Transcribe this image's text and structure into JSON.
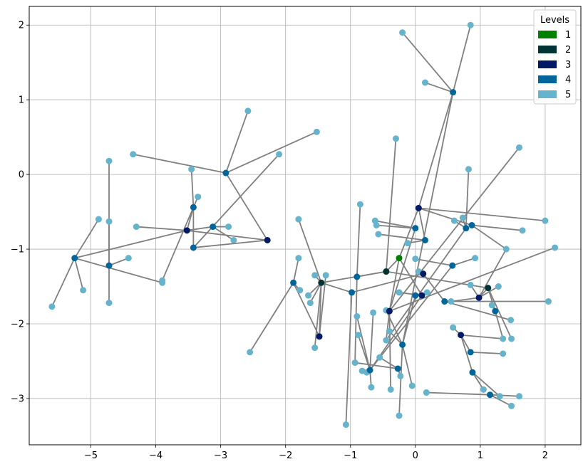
{
  "chart_data": {
    "type": "scatter",
    "title": "",
    "xlabel": "",
    "ylabel": "",
    "xlim": [
      -5.95,
      2.55
    ],
    "ylim": [
      -3.62,
      2.25
    ],
    "xticks": [
      -5,
      -4,
      -3,
      -2,
      -1,
      0,
      1,
      2
    ],
    "yticks": [
      -3,
      -2,
      -1,
      0,
      1,
      2
    ],
    "xtick_labels": [
      "−5",
      "−4",
      "−3",
      "−2",
      "−1",
      "0",
      "1",
      "2"
    ],
    "ytick_labels": [
      "−3",
      "−2",
      "−1",
      "0",
      "1",
      "2"
    ],
    "grid": true,
    "edge_color": "#808080",
    "legend": {
      "title": "Levels",
      "placement": "top-right",
      "entries": [
        {
          "label": "1",
          "color": "#008000"
        },
        {
          "label": "2",
          "color": "#003333"
        },
        {
          "label": "3",
          "color": "#001a66"
        },
        {
          "label": "4",
          "color": "#006699"
        },
        {
          "label": "5",
          "color": "#66b3cc"
        }
      ]
    },
    "level_colors": {
      "1": "#008000",
      "2": "#003333",
      "3": "#001a66",
      "4": "#006699",
      "5": "#66b3cc"
    },
    "nodes": [
      {
        "id": "r",
        "x": -0.25,
        "y": -1.12,
        "level": 1
      },
      {
        "id": "a",
        "x": -0.45,
        "y": -1.3,
        "level": 2
      },
      {
        "id": "b",
        "x": -1.45,
        "y": -1.45,
        "level": 2
      },
      {
        "id": "c",
        "x": 1.12,
        "y": -1.52,
        "level": 2
      },
      {
        "id": "d",
        "x": 0.05,
        "y": -0.45,
        "level": 3
      },
      {
        "id": "e",
        "x": -2.28,
        "y": -0.88,
        "level": 3
      },
      {
        "id": "f",
        "x": -3.52,
        "y": -0.75,
        "level": 3
      },
      {
        "id": "g",
        "x": -1.48,
        "y": -2.17,
        "level": 3
      },
      {
        "id": "h",
        "x": -0.4,
        "y": -1.83,
        "level": 3
      },
      {
        "id": "i",
        "x": 0.12,
        "y": -1.33,
        "level": 3
      },
      {
        "id": "j",
        "x": 0.7,
        "y": -2.15,
        "level": 3
      },
      {
        "id": "k",
        "x": 0.98,
        "y": -1.65,
        "level": 3
      },
      {
        "id": "l",
        "x": 0.1,
        "y": -1.62,
        "level": 3
      },
      {
        "id": "m1",
        "x": 0.58,
        "y": 1.1,
        "level": 4
      },
      {
        "id": "m2",
        "x": -2.92,
        "y": 0.02,
        "level": 4
      },
      {
        "id": "m3",
        "x": -3.42,
        "y": -0.44,
        "level": 4
      },
      {
        "id": "m4",
        "x": -3.12,
        "y": -0.7,
        "level": 4
      },
      {
        "id": "m5",
        "x": -3.42,
        "y": -0.98,
        "level": 4
      },
      {
        "id": "m6",
        "x": -5.25,
        "y": -1.12,
        "level": 4
      },
      {
        "id": "m7",
        "x": -4.72,
        "y": -1.22,
        "level": 4
      },
      {
        "id": "m8",
        "x": -1.88,
        "y": -1.45,
        "level": 4
      },
      {
        "id": "m9",
        "x": -0.98,
        "y": -1.58,
        "level": 4
      },
      {
        "id": "m10",
        "x": -0.9,
        "y": -1.37,
        "level": 4
      },
      {
        "id": "m11",
        "x": 0.15,
        "y": -0.88,
        "level": 4
      },
      {
        "id": "m12",
        "x": 0.0,
        "y": -0.72,
        "level": 4
      },
      {
        "id": "m13",
        "x": 0.78,
        "y": -0.72,
        "level": 4
      },
      {
        "id": "m14",
        "x": 0.87,
        "y": -0.68,
        "level": 4
      },
      {
        "id": "m15",
        "x": 0.57,
        "y": -1.22,
        "level": 4
      },
      {
        "id": "m16",
        "x": 0.45,
        "y": -1.7,
        "level": 4
      },
      {
        "id": "m17",
        "x": 0.0,
        "y": -1.62,
        "level": 4
      },
      {
        "id": "m18",
        "x": 1.23,
        "y": -1.83,
        "level": 4
      },
      {
        "id": "m19",
        "x": 0.85,
        "y": -2.38,
        "level": 4
      },
      {
        "id": "m20",
        "x": 0.88,
        "y": -2.65,
        "level": 4
      },
      {
        "id": "m21",
        "x": 1.15,
        "y": -2.95,
        "level": 4
      },
      {
        "id": "m22",
        "x": -0.2,
        "y": -2.28,
        "level": 4
      },
      {
        "id": "m23",
        "x": -0.27,
        "y": -2.6,
        "level": 4
      },
      {
        "id": "m24",
        "x": -0.7,
        "y": -2.62,
        "level": 4
      },
      {
        "id": "n1",
        "x": -0.2,
        "y": 1.9,
        "level": 5
      },
      {
        "id": "n2",
        "x": 0.85,
        "y": 2.0,
        "level": 5
      },
      {
        "id": "n3",
        "x": 0.15,
        "y": 1.23,
        "level": 5
      },
      {
        "id": "n4",
        "x": -2.58,
        "y": 0.85,
        "level": 5
      },
      {
        "id": "n5",
        "x": -1.52,
        "y": 0.57,
        "level": 5
      },
      {
        "id": "n6",
        "x": -2.1,
        "y": 0.27,
        "level": 5
      },
      {
        "id": "n7",
        "x": -4.35,
        "y": 0.27,
        "level": 5
      },
      {
        "id": "n8",
        "x": -4.72,
        "y": 0.18,
        "level": 5
      },
      {
        "id": "n9",
        "x": -3.45,
        "y": 0.07,
        "level": 5
      },
      {
        "id": "n10",
        "x": -3.35,
        "y": -0.3,
        "level": 5
      },
      {
        "id": "n11",
        "x": -4.88,
        "y": -0.6,
        "level": 5
      },
      {
        "id": "n12",
        "x": -4.72,
        "y": -0.63,
        "level": 5
      },
      {
        "id": "n13",
        "x": -4.3,
        "y": -0.7,
        "level": 5
      },
      {
        "id": "n14",
        "x": -2.88,
        "y": -0.7,
        "level": 5
      },
      {
        "id": "n15",
        "x": -2.8,
        "y": -0.88,
        "level": 5
      },
      {
        "id": "n16",
        "x": -4.42,
        "y": -1.12,
        "level": 5
      },
      {
        "id": "n17",
        "x": -3.9,
        "y": -1.42,
        "level": 5
      },
      {
        "id": "n18",
        "x": -3.9,
        "y": -1.45,
        "level": 5
      },
      {
        "id": "n19",
        "x": -5.12,
        "y": -1.55,
        "level": 5
      },
      {
        "id": "n20",
        "x": -4.72,
        "y": -1.72,
        "level": 5
      },
      {
        "id": "n21",
        "x": -5.6,
        "y": -1.77,
        "level": 5
      },
      {
        "id": "n22",
        "x": -2.55,
        "y": -2.38,
        "level": 5
      },
      {
        "id": "n23",
        "x": -1.8,
        "y": -0.6,
        "level": 5
      },
      {
        "id": "n24",
        "x": -1.8,
        "y": -1.12,
        "level": 5
      },
      {
        "id": "n25",
        "x": -1.55,
        "y": -1.35,
        "level": 5
      },
      {
        "id": "n26",
        "x": -1.38,
        "y": -1.35,
        "level": 5
      },
      {
        "id": "n27",
        "x": -1.78,
        "y": -1.55,
        "level": 5
      },
      {
        "id": "n28",
        "x": -1.65,
        "y": -1.62,
        "level": 5
      },
      {
        "id": "n29",
        "x": -1.62,
        "y": -1.72,
        "level": 5
      },
      {
        "id": "n30",
        "x": -1.55,
        "y": -2.32,
        "level": 5
      },
      {
        "id": "n31",
        "x": -0.85,
        "y": -0.4,
        "level": 5
      },
      {
        "id": "n32",
        "x": -0.62,
        "y": -0.62,
        "level": 5
      },
      {
        "id": "n33",
        "x": -0.6,
        "y": -0.68,
        "level": 5
      },
      {
        "id": "n34",
        "x": -0.57,
        "y": -0.8,
        "level": 5
      },
      {
        "id": "n35",
        "x": -0.3,
        "y": 0.48,
        "level": 5
      },
      {
        "id": "n36",
        "x": -0.12,
        "y": -0.92,
        "level": 5
      },
      {
        "id": "n37",
        "x": 0.6,
        "y": -0.62,
        "level": 5
      },
      {
        "id": "n38",
        "x": 0.73,
        "y": -0.58,
        "level": 5
      },
      {
        "id": "n39",
        "x": 0.82,
        "y": 0.07,
        "level": 5
      },
      {
        "id": "n40",
        "x": 1.6,
        "y": 0.36,
        "level": 5
      },
      {
        "id": "n41",
        "x": 1.65,
        "y": -0.75,
        "level": 5
      },
      {
        "id": "n42",
        "x": 2.0,
        "y": -0.62,
        "level": 5
      },
      {
        "id": "n43",
        "x": 2.15,
        "y": -0.98,
        "level": 5
      },
      {
        "id": "n44",
        "x": 1.4,
        "y": -1.0,
        "level": 5
      },
      {
        "id": "n45",
        "x": 0.92,
        "y": -1.12,
        "level": 5
      },
      {
        "id": "n46",
        "x": 0.0,
        "y": -1.13,
        "level": 5
      },
      {
        "id": "n47",
        "x": 0.05,
        "y": -1.3,
        "level": 5
      },
      {
        "id": "n48",
        "x": 0.85,
        "y": -1.48,
        "level": 5
      },
      {
        "id": "n49",
        "x": 0.18,
        "y": -1.58,
        "level": 5
      },
      {
        "id": "n50",
        "x": -0.25,
        "y": -1.58,
        "level": 5
      },
      {
        "id": "n51",
        "x": 0.55,
        "y": -1.7,
        "level": 5
      },
      {
        "id": "n52",
        "x": 1.28,
        "y": -1.5,
        "level": 5
      },
      {
        "id": "n53",
        "x": 1.18,
        "y": -1.75,
        "level": 5
      },
      {
        "id": "n54",
        "x": 2.05,
        "y": -1.7,
        "level": 5
      },
      {
        "id": "n55",
        "x": 1.47,
        "y": -1.95,
        "level": 5
      },
      {
        "id": "n56",
        "x": 0.58,
        "y": -2.05,
        "level": 5
      },
      {
        "id": "n57",
        "x": 1.35,
        "y": -2.2,
        "level": 5
      },
      {
        "id": "n58",
        "x": 1.48,
        "y": -2.2,
        "level": 5
      },
      {
        "id": "n59",
        "x": 1.35,
        "y": -2.4,
        "level": 5
      },
      {
        "id": "n60",
        "x": 1.05,
        "y": -2.88,
        "level": 5
      },
      {
        "id": "n61",
        "x": 1.3,
        "y": -2.97,
        "level": 5
      },
      {
        "id": "n62",
        "x": 1.6,
        "y": -2.97,
        "level": 5
      },
      {
        "id": "n63",
        "x": 1.48,
        "y": -3.1,
        "level": 5
      },
      {
        "id": "n64",
        "x": 0.17,
        "y": -2.92,
        "level": 5
      },
      {
        "id": "n65",
        "x": -0.45,
        "y": -1.82,
        "level": 5
      },
      {
        "id": "n66",
        "x": -0.65,
        "y": -1.85,
        "level": 5
      },
      {
        "id": "n67",
        "x": -0.9,
        "y": -1.9,
        "level": 5
      },
      {
        "id": "n68",
        "x": -0.4,
        "y": -2.1,
        "level": 5
      },
      {
        "id": "n69",
        "x": -0.88,
        "y": -2.15,
        "level": 5
      },
      {
        "id": "n70",
        "x": -0.45,
        "y": -2.22,
        "level": 5
      },
      {
        "id": "n71",
        "x": -0.55,
        "y": -2.45,
        "level": 5
      },
      {
        "id": "n72",
        "x": -0.93,
        "y": -2.52,
        "level": 5
      },
      {
        "id": "n73",
        "x": -0.82,
        "y": -2.63,
        "level": 5
      },
      {
        "id": "n74",
        "x": -0.75,
        "y": -2.65,
        "level": 5
      },
      {
        "id": "n75",
        "x": -0.23,
        "y": -2.7,
        "level": 5
      },
      {
        "id": "n76",
        "x": -0.05,
        "y": -2.83,
        "level": 5
      },
      {
        "id": "n77",
        "x": -0.38,
        "y": -2.88,
        "level": 5
      },
      {
        "id": "n78",
        "x": -0.68,
        "y": -2.85,
        "level": 5
      },
      {
        "id": "n79",
        "x": -0.25,
        "y": -3.23,
        "level": 5
      },
      {
        "id": "n80",
        "x": -1.07,
        "y": -3.35,
        "level": 5
      }
    ],
    "edges": [
      [
        "r",
        "a"
      ],
      [
        "r",
        "d"
      ],
      [
        "r",
        "l"
      ],
      [
        "r",
        "h"
      ],
      [
        "a",
        "b"
      ],
      [
        "a",
        "c"
      ],
      [
        "b",
        "g"
      ],
      [
        "c",
        "k"
      ],
      [
        "c",
        "m18"
      ],
      [
        "d",
        "m1"
      ],
      [
        "d",
        "m14"
      ],
      [
        "d",
        "m11"
      ],
      [
        "d",
        "n42"
      ],
      [
        "m1",
        "n1"
      ],
      [
        "m1",
        "n2"
      ],
      [
        "m1",
        "n3"
      ],
      [
        "e",
        "m2"
      ],
      [
        "e",
        "m5"
      ],
      [
        "e",
        "f"
      ],
      [
        "m2",
        "n4"
      ],
      [
        "m2",
        "n7"
      ],
      [
        "m2",
        "n5"
      ],
      [
        "m5",
        "n6"
      ],
      [
        "f",
        "m3"
      ],
      [
        "f",
        "m4"
      ],
      [
        "f",
        "m6"
      ],
      [
        "m3",
        "n9"
      ],
      [
        "m3",
        "n10"
      ],
      [
        "m3",
        "m5"
      ],
      [
        "m4",
        "n14"
      ],
      [
        "m4",
        "n15"
      ],
      [
        "m6",
        "n11"
      ],
      [
        "m6",
        "n19"
      ],
      [
        "m6",
        "n21"
      ],
      [
        "m6",
        "n18"
      ],
      [
        "m7",
        "n8"
      ],
      [
        "m7",
        "n12"
      ],
      [
        "m7",
        "n16"
      ],
      [
        "m7",
        "n20"
      ],
      [
        "f",
        "n13"
      ],
      [
        "m3",
        "n17"
      ],
      [
        "g",
        "m8"
      ],
      [
        "g",
        "n26"
      ],
      [
        "m8",
        "n22"
      ],
      [
        "m8",
        "n24"
      ],
      [
        "m8",
        "n27"
      ],
      [
        "b",
        "n23"
      ],
      [
        "b",
        "n25"
      ],
      [
        "b",
        "n28"
      ],
      [
        "b",
        "n29"
      ],
      [
        "b",
        "n30"
      ],
      [
        "m9",
        "b"
      ],
      [
        "m10",
        "n31"
      ],
      [
        "m10",
        "n72"
      ],
      [
        "m9",
        "n80"
      ],
      [
        "a",
        "m10"
      ],
      [
        "a",
        "n35"
      ],
      [
        "h",
        "m12"
      ],
      [
        "h",
        "n43"
      ],
      [
        "h",
        "n40"
      ],
      [
        "m11",
        "n36"
      ],
      [
        "m11",
        "n34"
      ],
      [
        "m12",
        "n32"
      ],
      [
        "m12",
        "n33"
      ],
      [
        "m13",
        "n37"
      ],
      [
        "m13",
        "n38"
      ],
      [
        "m13",
        "n39"
      ],
      [
        "m14",
        "n41"
      ],
      [
        "m14",
        "n44"
      ],
      [
        "m15",
        "n45"
      ],
      [
        "m15",
        "n46"
      ],
      [
        "i",
        "m16"
      ],
      [
        "i",
        "n47"
      ],
      [
        "l",
        "n49"
      ],
      [
        "l",
        "n50"
      ],
      [
        "l",
        "m17"
      ],
      [
        "k",
        "n48"
      ],
      [
        "k",
        "n51"
      ],
      [
        "k",
        "n52"
      ],
      [
        "k",
        "n44"
      ],
      [
        "m16",
        "n54"
      ],
      [
        "m16",
        "n55"
      ],
      [
        "m18",
        "n53"
      ],
      [
        "j",
        "m19"
      ],
      [
        "j",
        "n56"
      ],
      [
        "j",
        "n57"
      ],
      [
        "m19",
        "n59"
      ],
      [
        "m20",
        "n60"
      ],
      [
        "m20",
        "n61"
      ],
      [
        "m21",
        "n62"
      ],
      [
        "m21",
        "n63"
      ],
      [
        "m21",
        "n64"
      ],
      [
        "j",
        "m20"
      ],
      [
        "m22",
        "n65"
      ],
      [
        "m22",
        "n68"
      ],
      [
        "m22",
        "n76"
      ],
      [
        "m23",
        "n71"
      ],
      [
        "m23",
        "n75"
      ],
      [
        "m23",
        "n72"
      ],
      [
        "m24",
        "n73"
      ],
      [
        "m24",
        "n74"
      ],
      [
        "m24",
        "n78"
      ],
      [
        "m24",
        "n66"
      ],
      [
        "m24",
        "n67"
      ],
      [
        "m24",
        "n69"
      ],
      [
        "h",
        "n70"
      ],
      [
        "h",
        "n77"
      ],
      [
        "m22",
        "n79"
      ],
      [
        "m17",
        "m22"
      ],
      [
        "l",
        "m24"
      ],
      [
        "c",
        "n58"
      ],
      [
        "m18",
        "n57"
      ],
      [
        "i",
        "m9"
      ],
      [
        "m13",
        "n70"
      ],
      [
        "m15",
        "m24"
      ],
      [
        "m1",
        "m22"
      ]
    ]
  }
}
